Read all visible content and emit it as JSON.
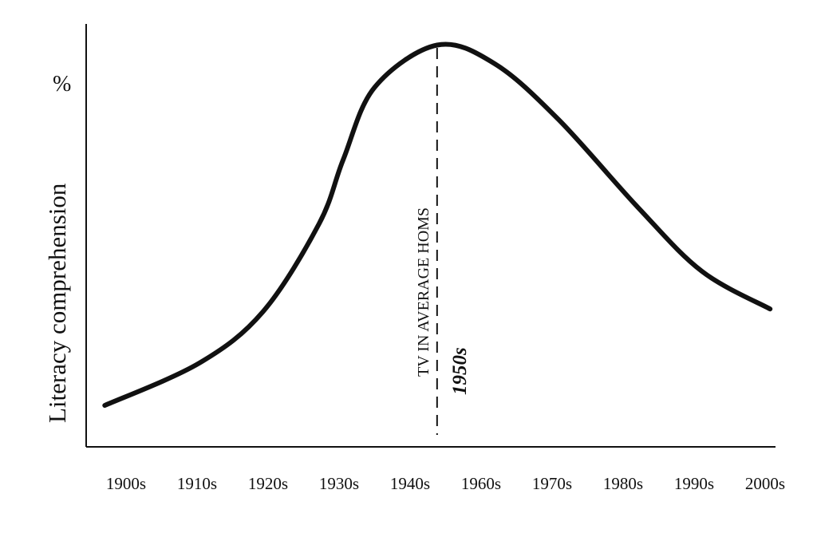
{
  "chart_data": {
    "type": "line",
    "title": "",
    "xlabel": "",
    "ylabel": "Literacy comprehension",
    "y_unit_label": "%",
    "categories": [
      "1900s",
      "1910s",
      "1920s",
      "1930s",
      "1940s",
      "1960s",
      "1970s",
      "1980s",
      "1990s",
      "2000s"
    ],
    "ylim": [
      0,
      100
    ],
    "grid": false,
    "series": [
      {
        "name": "Literacy comprehension",
        "x": [
          -0.3,
          1.03,
          1.93,
          2.72,
          3.06,
          3.5,
          4.38,
          5.19,
          6.09,
          7.21,
          8.11,
          9.07
        ],
        "y": [
          9.8,
          19.8,
          32,
          52.8,
          68,
          85,
          95,
          90.6,
          77.4,
          56.6,
          41.5,
          32.6
        ]
      }
    ],
    "annotations": {
      "marker_x": 4.38,
      "label": "TV IN AVERAGE HOMS",
      "sublabel": "1950s"
    }
  }
}
